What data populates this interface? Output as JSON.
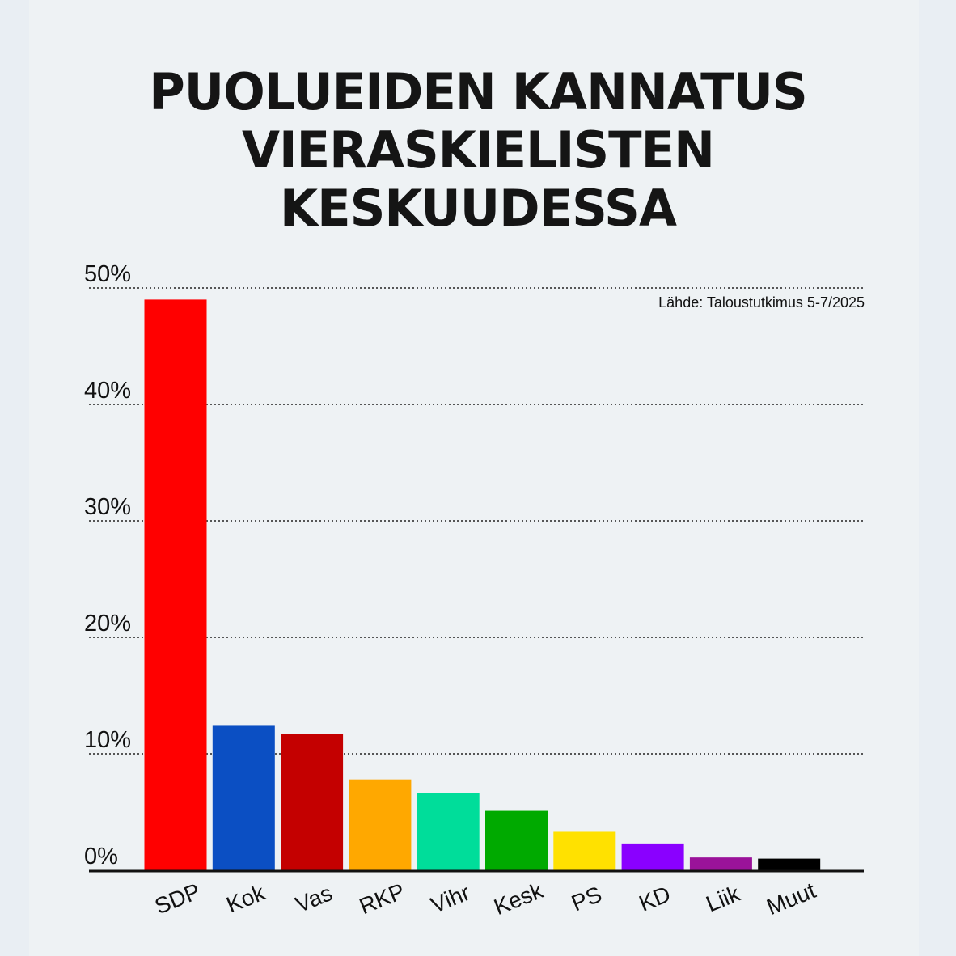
{
  "title_lines": [
    "PUOLUEIDEN KANNATUS",
    "VIERASKIELISTEN",
    "KESKUUDESSA"
  ],
  "source": "Lähde: Taloustutkimus 5-7/2025",
  "chart_data": {
    "type": "bar",
    "title": "PUOLUEIDEN KANNATUS VIERASKIELISTEN KESKUUDESSA",
    "categories": [
      "SDP",
      "Kok",
      "Vas",
      "RKP",
      "Vihr",
      "Kesk",
      "PS",
      "KD",
      "Liik",
      "Muut"
    ],
    "values": [
      49,
      12.4,
      11.7,
      7.8,
      6.6,
      5.1,
      3.3,
      2.3,
      1.1,
      1.0
    ],
    "colors": [
      "#ff0000",
      "#0b4fc3",
      "#c40000",
      "#ffa800",
      "#00dd9a",
      "#00aa00",
      "#ffe100",
      "#8a00ff",
      "#9a1399",
      "#000000"
    ],
    "yticks": [
      "0%",
      "10%",
      "20%",
      "30%",
      "40%",
      "50%"
    ],
    "ylim": [
      0,
      50
    ],
    "xlabel": "",
    "ylabel": "",
    "grid": true
  }
}
